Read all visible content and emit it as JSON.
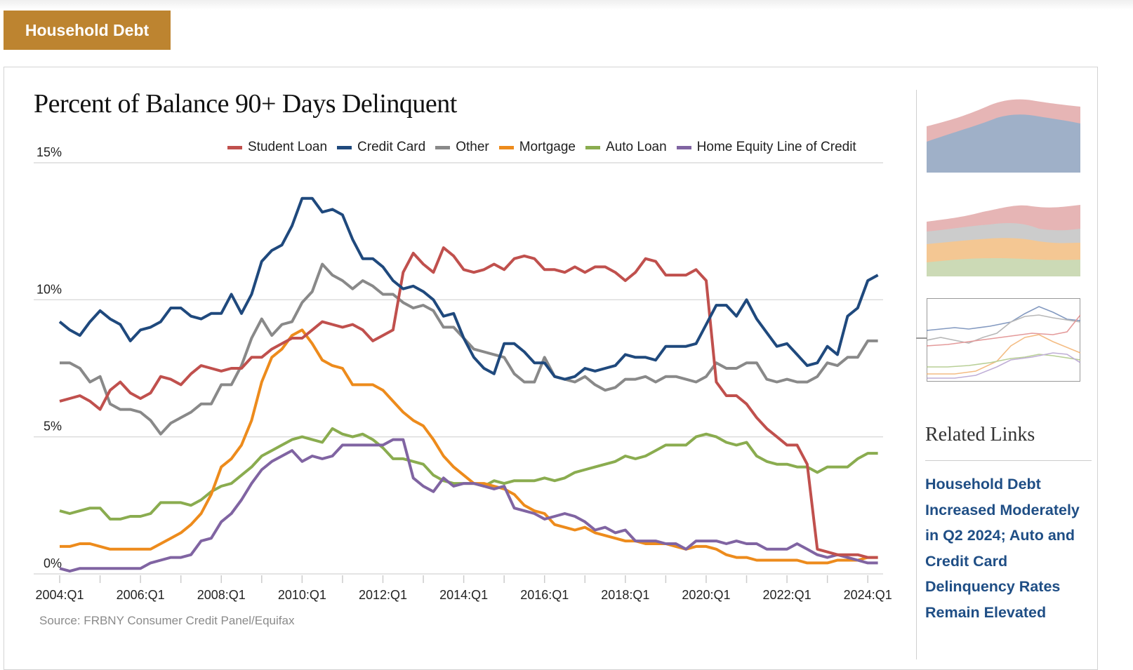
{
  "header": {
    "tag_label": "Household Debt"
  },
  "sidebar": {
    "related_title": "Related Links",
    "links": [
      {
        "label": "Household Debt Increased Moderately in Q2 2024; Auto and Credit Card Delinquency Rates Remain Elevated"
      }
    ]
  },
  "chart_data": {
    "type": "line",
    "title": "Percent of Balance 90+ Days Delinquent",
    "source": "Source: FRBNY Consumer Credit Panel/Equifax",
    "x_start": "2004:Q1",
    "x_end": "2024:Q2",
    "x_ticks": [
      "2004:Q1",
      "2006:Q1",
      "2008:Q1",
      "2010:Q1",
      "2012:Q1",
      "2014:Q1",
      "2016:Q1",
      "2018:Q1",
      "2020:Q1",
      "2022:Q1",
      "2024:Q1"
    ],
    "y_ticks": [
      "0%",
      "5%",
      "10%",
      "15%"
    ],
    "ylim": [
      0,
      15
    ],
    "grid": true,
    "legend_position": "top-right",
    "series": [
      {
        "name": "Student Loan",
        "color": "#c0504d",
        "values": [
          6.3,
          6.4,
          6.5,
          6.3,
          6.0,
          6.7,
          7.0,
          6.6,
          6.4,
          6.6,
          7.2,
          7.1,
          6.9,
          7.3,
          7.6,
          7.5,
          7.4,
          7.5,
          7.5,
          7.9,
          7.9,
          8.2,
          8.4,
          8.6,
          8.6,
          8.9,
          9.2,
          9.1,
          9.0,
          9.1,
          8.9,
          8.5,
          8.7,
          8.9,
          11.0,
          11.7,
          11.3,
          11.0,
          11.9,
          11.6,
          11.1,
          11.0,
          11.1,
          11.3,
          11.1,
          11.5,
          11.6,
          11.5,
          11.1,
          11.1,
          11.0,
          11.2,
          11.0,
          11.2,
          11.2,
          11.0,
          10.7,
          11.0,
          11.5,
          11.4,
          10.9,
          10.9,
          10.9,
          11.1,
          10.7,
          7.0,
          6.5,
          6.5,
          6.2,
          5.7,
          5.3,
          5.0,
          4.7,
          4.7,
          4.0,
          0.9,
          0.8,
          0.7,
          0.7,
          0.7,
          0.6,
          0.6
        ]
      },
      {
        "name": "Credit Card",
        "color": "#1f497d",
        "values": [
          9.2,
          8.9,
          8.7,
          9.2,
          9.6,
          9.3,
          9.1,
          8.5,
          8.9,
          9.0,
          9.2,
          9.7,
          9.7,
          9.4,
          9.3,
          9.5,
          9.5,
          10.2,
          9.5,
          10.2,
          11.4,
          11.8,
          12.0,
          12.7,
          13.7,
          13.7,
          13.2,
          13.3,
          13.1,
          12.2,
          11.5,
          11.5,
          11.2,
          10.7,
          10.4,
          10.5,
          10.3,
          10.0,
          9.4,
          9.5,
          8.6,
          7.9,
          7.5,
          7.3,
          8.4,
          8.4,
          8.1,
          7.7,
          7.7,
          7.2,
          7.1,
          7.2,
          7.5,
          7.4,
          7.5,
          7.6,
          8.0,
          7.9,
          7.9,
          7.8,
          8.3,
          8.3,
          8.3,
          8.4,
          9.1,
          9.8,
          9.8,
          9.4,
          10.0,
          9.3,
          8.8,
          8.3,
          8.4,
          8.0,
          7.6,
          7.7,
          8.3,
          8.0,
          9.4,
          9.7,
          10.7,
          10.9
        ]
      },
      {
        "name": "Other",
        "color": "#898989",
        "values": [
          7.7,
          7.7,
          7.5,
          7.0,
          7.2,
          6.2,
          6.0,
          6.0,
          5.9,
          5.6,
          5.1,
          5.5,
          5.7,
          5.9,
          6.2,
          6.2,
          6.9,
          6.9,
          7.6,
          8.6,
          9.3,
          8.7,
          9.1,
          9.2,
          9.9,
          10.3,
          11.3,
          10.9,
          10.7,
          10.4,
          10.7,
          10.5,
          10.2,
          10.2,
          9.9,
          9.7,
          9.8,
          9.6,
          9.0,
          9.0,
          8.6,
          8.2,
          8.1,
          8.0,
          7.9,
          7.3,
          7.0,
          7.0,
          7.9,
          7.2,
          7.1,
          7.0,
          7.2,
          6.9,
          6.7,
          6.8,
          7.1,
          7.1,
          7.2,
          7.0,
          7.2,
          7.2,
          7.1,
          7.0,
          7.2,
          7.7,
          7.5,
          7.5,
          7.7,
          7.7,
          7.1,
          7.0,
          7.1,
          7.0,
          7.0,
          7.2,
          7.7,
          7.6,
          7.9,
          7.9,
          8.5,
          8.5
        ]
      },
      {
        "name": "Mortgage",
        "color": "#ed8b1c",
        "values": [
          1.0,
          1.0,
          1.1,
          1.1,
          1.0,
          0.9,
          0.9,
          0.9,
          0.9,
          0.9,
          1.1,
          1.3,
          1.5,
          1.8,
          2.2,
          2.9,
          3.9,
          4.2,
          4.7,
          5.6,
          7.0,
          7.9,
          8.2,
          8.7,
          8.9,
          8.4,
          7.8,
          7.6,
          7.5,
          6.9,
          6.9,
          6.9,
          6.7,
          6.3,
          5.9,
          5.6,
          5.4,
          4.9,
          4.3,
          3.9,
          3.6,
          3.3,
          3.3,
          3.2,
          3.1,
          2.9,
          2.5,
          2.3,
          2.2,
          1.8,
          1.7,
          1.6,
          1.7,
          1.5,
          1.4,
          1.3,
          1.2,
          1.2,
          1.1,
          1.1,
          1.1,
          1.0,
          0.9,
          1.0,
          1.0,
          0.9,
          0.7,
          0.6,
          0.6,
          0.5,
          0.5,
          0.5,
          0.5,
          0.5,
          0.4,
          0.4,
          0.4,
          0.5,
          0.5,
          0.5,
          0.6,
          0.6
        ]
      },
      {
        "name": "Auto Loan",
        "color": "#8aac4f",
        "values": [
          2.3,
          2.2,
          2.3,
          2.4,
          2.4,
          2.0,
          2.0,
          2.1,
          2.1,
          2.2,
          2.6,
          2.6,
          2.6,
          2.5,
          2.7,
          3.0,
          3.2,
          3.3,
          3.6,
          3.9,
          4.3,
          4.5,
          4.7,
          4.9,
          5.0,
          4.9,
          4.8,
          5.3,
          5.1,
          5.0,
          5.1,
          4.9,
          4.6,
          4.2,
          4.2,
          4.1,
          4.0,
          3.6,
          3.4,
          3.3,
          3.3,
          3.3,
          3.2,
          3.4,
          3.3,
          3.4,
          3.4,
          3.4,
          3.5,
          3.4,
          3.5,
          3.7,
          3.8,
          3.9,
          4.0,
          4.1,
          4.3,
          4.2,
          4.3,
          4.5,
          4.7,
          4.7,
          4.7,
          5.0,
          5.1,
          5.0,
          4.8,
          4.7,
          4.8,
          4.3,
          4.1,
          4.0,
          4.0,
          3.9,
          3.9,
          3.7,
          3.9,
          3.9,
          3.9,
          4.2,
          4.4,
          4.4
        ]
      },
      {
        "name": "Home Equity Line of Credit",
        "color": "#8064a2",
        "values": [
          0.2,
          0.1,
          0.2,
          0.2,
          0.2,
          0.2,
          0.2,
          0.2,
          0.2,
          0.4,
          0.5,
          0.6,
          0.6,
          0.7,
          1.2,
          1.3,
          1.9,
          2.2,
          2.7,
          3.3,
          3.8,
          4.1,
          4.3,
          4.5,
          4.1,
          4.3,
          4.2,
          4.3,
          4.7,
          4.7,
          4.7,
          4.7,
          4.7,
          4.9,
          4.9,
          3.5,
          3.2,
          3.0,
          3.5,
          3.2,
          3.3,
          3.3,
          3.2,
          3.1,
          3.2,
          2.4,
          2.3,
          2.2,
          2.0,
          2.1,
          2.2,
          2.1,
          1.9,
          1.6,
          1.7,
          1.5,
          1.6,
          1.2,
          1.2,
          1.2,
          1.1,
          1.1,
          0.9,
          1.2,
          1.2,
          1.2,
          1.1,
          1.2,
          1.1,
          1.1,
          0.9,
          0.9,
          0.9,
          1.1,
          0.9,
          0.7,
          0.6,
          0.7,
          0.6,
          0.5,
          0.4,
          0.4
        ]
      }
    ]
  }
}
